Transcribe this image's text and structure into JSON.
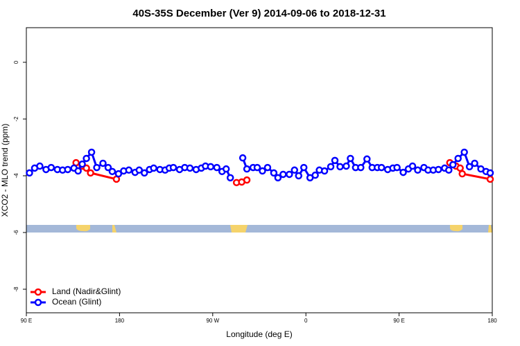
{
  "chart_data": {
    "type": "line",
    "title": "40S-35S December (Ver 9)   2014-09-06 to 2018-12-31",
    "x_label": "Longitude (deg E)",
    "y_label": "XCO2 - MLO trend (ppm)",
    "xlim": [
      90,
      540
    ],
    "xticks": [
      {
        "value": 90,
        "label": "90 E"
      },
      180,
      {
        "value": 270,
        "label": "90 W"
      },
      {
        "value": 360,
        "label": "0"
      },
      {
        "value": 450,
        "label": "90 E"
      },
      {
        "value": 540,
        "label": "180"
      }
    ],
    "ylim": [
      -8.83,
      1.22
    ],
    "yticks": [
      0,
      -2,
      -4,
      -6,
      -8
    ],
    "legend": "bottom-left",
    "series": [
      {
        "name": "Land (Nadir&Glint)",
        "color": "#ff0000",
        "x": [
          138,
          144,
          148,
          152,
          177,
          230,
          293,
          298,
          303,
          400,
          499,
          505,
          509,
          511,
          538
        ],
        "values": [
          -3.54,
          -3.66,
          -3.73,
          -3.9,
          -4.12,
          null,
          -4.24,
          -4.22,
          -4.15,
          null,
          -3.54,
          -3.66,
          -3.73,
          -3.93,
          -4.12
        ]
      },
      {
        "name": "Ocean (Glint)",
        "color": "#0000ff",
        "x": [
          93,
          98,
          103,
          109,
          114,
          120,
          125,
          130,
          136,
          140,
          144,
          148,
          153,
          158,
          164,
          169,
          173,
          179,
          184,
          189,
          195,
          199,
          204,
          209,
          213,
          219,
          224,
          228,
          232,
          238,
          243,
          248,
          254,
          259,
          263,
          268,
          274,
          279,
          283,
          287,
          295,
          299,
          303,
          309,
          313,
          318,
          323,
          329,
          333,
          338,
          344,
          349,
          353,
          358,
          364,
          369,
          373,
          378,
          384,
          388,
          393,
          399,
          403,
          408,
          413,
          419,
          424,
          429,
          433,
          439,
          444,
          448,
          454,
          459,
          463,
          468,
          474,
          478,
          483,
          488,
          494,
          498,
          502,
          507,
          513,
          518,
          523,
          529,
          534,
          538
        ],
        "values": [
          -3.9,
          -3.73,
          -3.66,
          -3.78,
          -3.71,
          -3.78,
          -3.8,
          -3.78,
          -3.73,
          -3.83,
          -3.59,
          -3.39,
          -3.17,
          -3.71,
          -3.56,
          -3.71,
          -3.85,
          -3.93,
          -3.83,
          -3.8,
          -3.88,
          -3.8,
          -3.9,
          -3.78,
          -3.73,
          -3.78,
          -3.8,
          -3.73,
          -3.71,
          -3.78,
          -3.71,
          -3.73,
          -3.78,
          -3.73,
          -3.66,
          -3.68,
          -3.71,
          -3.85,
          -3.76,
          -4.07,
          null,
          -3.37,
          -3.76,
          -3.71,
          -3.71,
          -3.83,
          -3.71,
          -3.9,
          -4.07,
          -3.95,
          -3.95,
          -3.8,
          -4.0,
          -3.71,
          -4.07,
          -3.98,
          -3.8,
          -3.83,
          -3.68,
          -3.46,
          -3.68,
          -3.66,
          -3.39,
          -3.71,
          -3.71,
          -3.41,
          -3.71,
          -3.71,
          -3.71,
          -3.78,
          -3.73,
          -3.71,
          -3.88,
          -3.76,
          -3.66,
          -3.8,
          -3.71,
          -3.8,
          -3.8,
          -3.78,
          -3.73,
          -3.8,
          -3.61,
          -3.39,
          -3.17,
          -3.68,
          -3.56,
          -3.76,
          -3.85,
          -3.9
        ]
      }
    ]
  }
}
